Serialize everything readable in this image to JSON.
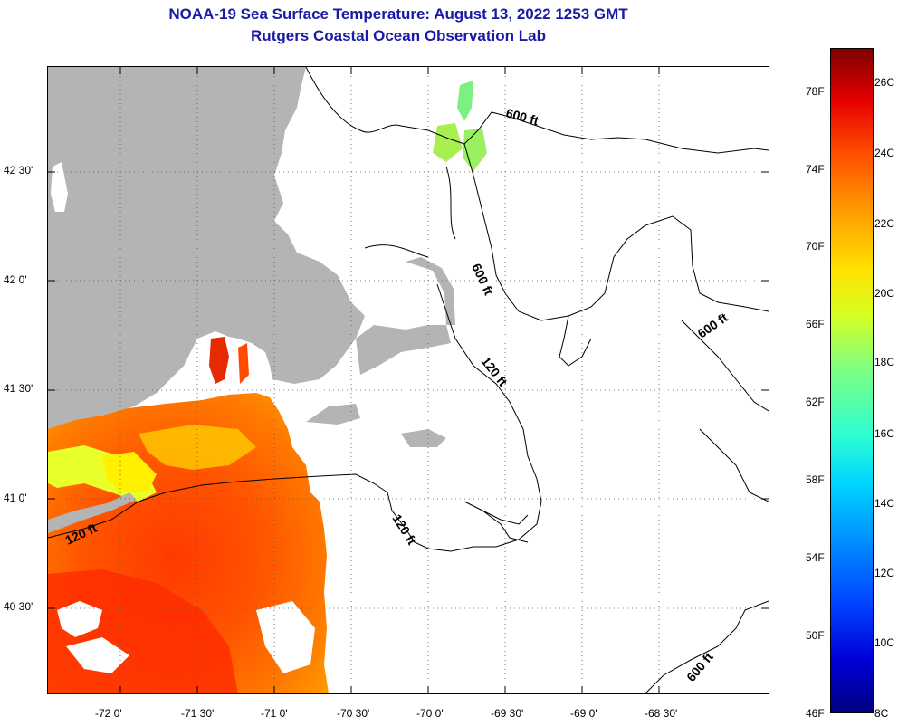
{
  "title": {
    "line1": "NOAA-19 Sea Surface Temperature:  August 13, 2022 1253 GMT",
    "line2": "Rutgers Coastal Ocean Observation Lab"
  },
  "latitude_labels": [
    "42 30'",
    "42 0'",
    "41 30'",
    "41 0'",
    "40 30'"
  ],
  "longitude_labels": [
    "-72 0'",
    "-71 30'",
    "-71 0'",
    "-70 30'",
    "-70 0'",
    "-69 30'",
    "-69 0'",
    "-68 30'"
  ],
  "colorbar": {
    "fahrenheit": [
      "78F",
      "74F",
      "70F",
      "66F",
      "62F",
      "58F",
      "54F",
      "50F",
      "46F"
    ],
    "celsius": [
      "26C",
      "24C",
      "22C",
      "20C",
      "18C",
      "16C",
      "14C",
      "12C",
      "10C",
      "8C"
    ]
  },
  "contour_labels": [
    "600 ft",
    "600 ft",
    "600 ft",
    "600 ft",
    "120 ft",
    "120 ft",
    "120 ft"
  ],
  "colors": {
    "title": "#1a1aa6",
    "land": "#b4b4b4",
    "sst_warm": "#ff4a00",
    "sst_hot": "#e81000",
    "sst_mid": "#ffa000",
    "sst_cool": "#e6ff30"
  }
}
